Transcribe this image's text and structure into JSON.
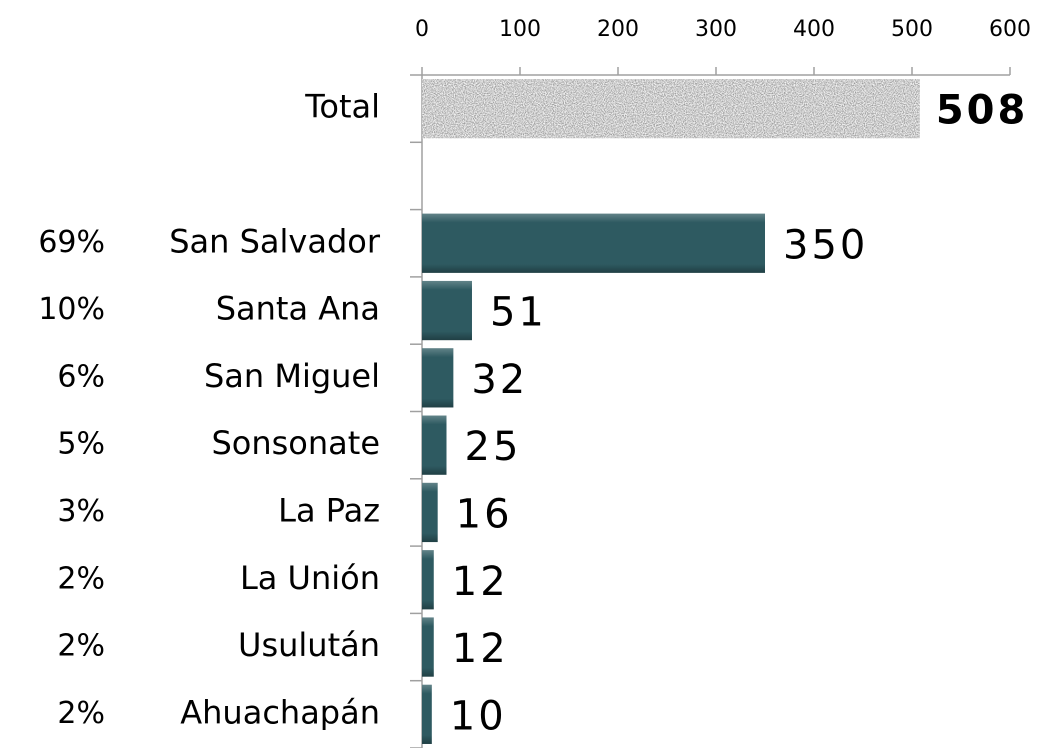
{
  "chart_data": {
    "type": "bar",
    "orientation": "horizontal",
    "categories": [
      "Total",
      null,
      "San Salvador",
      "Santa Ana",
      "San Miguel",
      "Sonsonate",
      "La Paz",
      "La Unión",
      "Usulután",
      "Ahuachapán"
    ],
    "values": [
      508,
      null,
      350,
      51,
      32,
      25,
      16,
      12,
      12,
      10
    ],
    "percent_labels": [
      null,
      null,
      "69%",
      "10%",
      "6%",
      "5%",
      "3%",
      "2%",
      "2%",
      "2%"
    ],
    "colors": [
      "#8a8a8a",
      null,
      "#2e5a61",
      "#2e5a61",
      "#2e5a61",
      "#2e5a61",
      "#2e5a61",
      "#2e5a61",
      "#2e5a61",
      "#2e5a61"
    ],
    "xlim": [
      0,
      600
    ],
    "xticks": [
      0,
      100,
      200,
      300,
      400,
      500,
      600
    ],
    "grid": false
  }
}
